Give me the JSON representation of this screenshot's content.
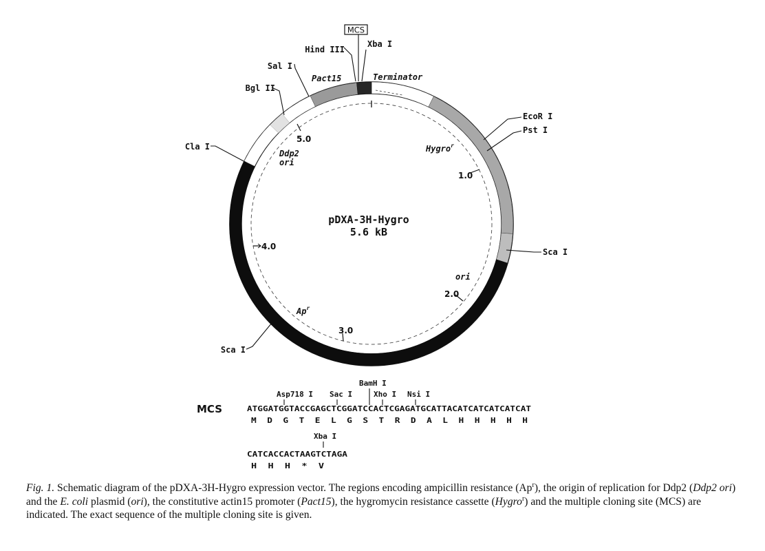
{
  "plasmid": {
    "name": "pDXA-3H-Hygro",
    "size": "5.6 kB"
  },
  "mcs_box_label": "MCS",
  "ruler": [
    {
      "label": "1.0",
      "arrow": false
    },
    {
      "label": "2.0",
      "arrow": false
    },
    {
      "label": "3.0",
      "arrow": false
    },
    {
      "label": "4.0",
      "arrow": true
    },
    {
      "label": "5.0",
      "arrow": false
    }
  ],
  "sites": [
    {
      "name": "Hind III"
    },
    {
      "name": "Xba I"
    },
    {
      "name": "Sal I"
    },
    {
      "name": "Bgl II"
    },
    {
      "name": "Cla I"
    },
    {
      "name": "EcoR I"
    },
    {
      "name": "Pst I"
    },
    {
      "name": "Sca I"
    },
    {
      "name": "Sca I"
    }
  ],
  "regions": [
    {
      "name": "Pact15",
      "fill": "#9a9a9a"
    },
    {
      "name": "MCS",
      "fill": "#262626"
    },
    {
      "name": "Terminator",
      "fill": "#ffffff"
    },
    {
      "name": "Hygro",
      "superscript": "r",
      "fill": "#a8a8a8"
    },
    {
      "name": "ori",
      "fill": "#ffffff"
    },
    {
      "name": "Ap",
      "superscript": "r",
      "fill": "#0d0d0d"
    },
    {
      "name": "Ddp2",
      "name2": "ori",
      "fill": "#ffffff"
    }
  ],
  "mcs": {
    "label": "MCS",
    "line1": {
      "sequence": "ATGGATGGTACCGAGCTCGGATCCACTCGAGATGCATTACATCATCATCATCAT",
      "translation": "M  D  G  T  E  L  G  S  T  R  D  A  L  H  H  H  H  H",
      "sites": [
        "Asp718 I",
        "Sac I",
        "BamH I",
        "Xho I",
        "Nsi I"
      ]
    },
    "line2": {
      "sequence": "CATCACCACTAAGTCTAGA",
      "translation": "H  H  H  *  V",
      "sites": [
        "Xba I"
      ]
    }
  },
  "caption": {
    "fig": "Fig. 1.",
    "t1": " Schematic diagram of the pDXA-3H-Hygro expression vector. The regions encoding ampicillin resistance (Ap",
    "s1": "r",
    "t2": "), the origin of replication for Ddp2 (",
    "i1": "Ddp2 ori",
    "t3": ") and the ",
    "i2": "E. coli",
    "t4": " plasmid (",
    "i3": "ori",
    "t5": "), the constitutive actin15 promoter (",
    "i4": "Pact15",
    "t6": "), the hygromycin resistance cassette (",
    "i5": "Hygro",
    "s2": "r",
    "t7": ") and the multiple cloning site (MCS) are indicated. The exact sequence of the multiple cloning site is given."
  }
}
